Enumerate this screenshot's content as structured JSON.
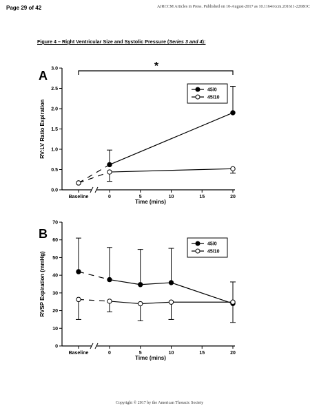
{
  "header": {
    "page_label": "Page 29 of 42",
    "journal_line": "AJRCCM Articles in Press. Published on 10-August-2017 as 10.1164/rccm.201611-2268OC"
  },
  "caption": {
    "prefix": "Figure 4 – Right Ventricular Size and Systolic Pressure (",
    "italic": "Series 3 and 4",
    "suffix": "):"
  },
  "footer": {
    "copyright": "Copyright © 2017 by the American Thoracic Society"
  },
  "chart_data": [
    {
      "panel": "A",
      "type": "line",
      "ylabel": "RV:LV Ratio Expiration",
      "xlabel": "Time (mins)",
      "categories": [
        "Baseline",
        "0",
        "5",
        "10",
        "15",
        "20"
      ],
      "ylim": [
        0.0,
        3.0
      ],
      "yticks": [
        "0.0",
        "0.5",
        "1.0",
        "1.5",
        "2.0",
        "2.5",
        "3.0"
      ],
      "significance": "*",
      "legend_position": "top-right",
      "series": [
        {
          "name": "45/0",
          "marker": "filled",
          "x": [
            "Baseline",
            "0",
            "20"
          ],
          "values": [
            0.17,
            0.62,
            1.9
          ],
          "error_upper": [
            null,
            0.98,
            2.55
          ],
          "error_lower": [
            null,
            null,
            null
          ]
        },
        {
          "name": "45/10",
          "marker": "open",
          "x": [
            "Baseline",
            "0",
            "20"
          ],
          "values": [
            0.17,
            0.44,
            0.52
          ],
          "error_upper": [
            null,
            null,
            null
          ],
          "error_lower": [
            null,
            0.21,
            0.41
          ]
        }
      ]
    },
    {
      "panel": "B",
      "type": "line",
      "ylabel": "RVSP Expiration (mmHg)",
      "xlabel": "Time (mins)",
      "categories": [
        "Baseline",
        "0",
        "5",
        "10",
        "15",
        "20"
      ],
      "ylim": [
        0,
        70
      ],
      "yticks": [
        "0",
        "10",
        "20",
        "30",
        "40",
        "50",
        "60",
        "70"
      ],
      "legend_position": "top-right",
      "series": [
        {
          "name": "45/0",
          "marker": "filled",
          "x": [
            "Baseline",
            "0",
            "5",
            "10",
            "20"
          ],
          "values": [
            42.0,
            37.5,
            34.7,
            35.8,
            24.0
          ],
          "error_upper": [
            61.0,
            55.7,
            54.6,
            55.2,
            36.2
          ],
          "error_lower": [
            null,
            null,
            null,
            null,
            null
          ]
        },
        {
          "name": "45/10",
          "marker": "open",
          "x": [
            "Baseline",
            "0",
            "5",
            "10",
            "20"
          ],
          "values": [
            26.3,
            25.3,
            23.9,
            24.8,
            24.8
          ],
          "error_upper": [
            null,
            null,
            null,
            null,
            null
          ],
          "error_lower": [
            15.0,
            19.3,
            14.2,
            15.0,
            13.3
          ]
        }
      ]
    }
  ]
}
